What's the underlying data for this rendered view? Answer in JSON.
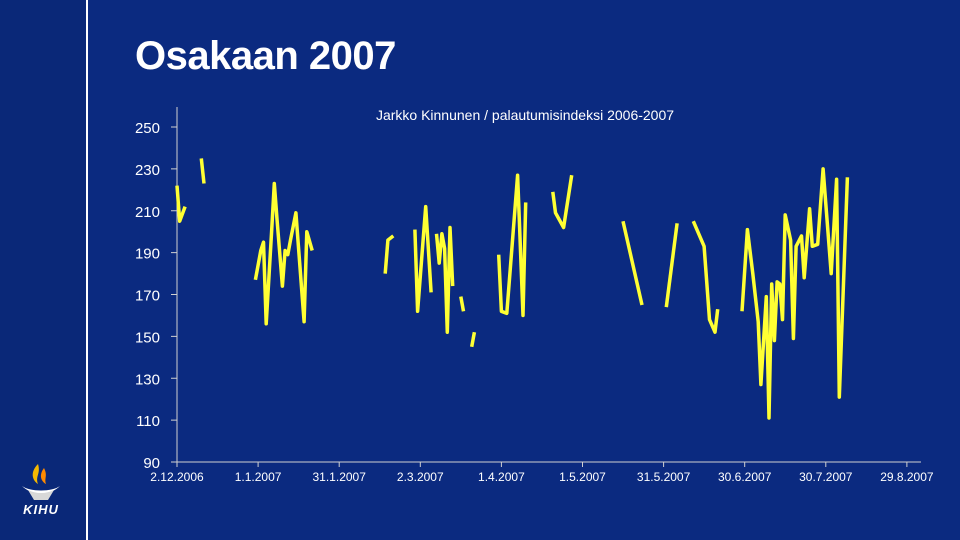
{
  "slide": {
    "title": "Osakaan 2007",
    "logo_text": "KIHU",
    "colors": {
      "background": "#0b2a80",
      "line": "#ffff33",
      "text": "#ffffff",
      "axis": "#d0d0d0"
    }
  },
  "chart_data": {
    "type": "line",
    "title": "Jarkko Kinnunen / palautumisindeksi  2006-2007",
    "xlabel": "",
    "ylabel": "",
    "ylim": [
      90,
      250
    ],
    "y_ticks": [
      "90",
      "110",
      "130",
      "150",
      "170",
      "190",
      "210",
      "230",
      "250"
    ],
    "x_ticks": [
      "2.12.2006",
      "1.1.2007",
      "31.1.2007",
      "2.3.2007",
      "1.4.2007",
      "1.5.2007",
      "31.5.2007",
      "30.6.2007",
      "30.7.2007",
      "29.8.2007"
    ],
    "x_start": "2006-12-02",
    "x_end": "2007-09-01",
    "grid": false,
    "legend": "none",
    "series": [
      {
        "segments": [
          [
            [
              "2006-12-02",
              222
            ],
            [
              "2006-12-03",
              205
            ],
            [
              "2006-12-05",
              212
            ]
          ],
          [
            [
              "2006-12-11",
              235
            ],
            [
              "2006-12-12",
              223
            ]
          ],
          [
            [
              "2006-12-31",
              177
            ],
            [
              "2007-01-02",
              191
            ],
            [
              "2007-01-03",
              195
            ],
            [
              "2007-01-04",
              156
            ],
            [
              "2007-01-06",
              200
            ],
            [
              "2007-01-07",
              223
            ],
            [
              "2007-01-08",
              206
            ],
            [
              "2007-01-10",
              174
            ],
            [
              "2007-01-11",
              191
            ],
            [
              "2007-01-12",
              189
            ],
            [
              "2007-01-13",
              196
            ],
            [
              "2007-01-15",
              209
            ],
            [
              "2007-01-18",
              157
            ],
            [
              "2007-01-19",
              200
            ],
            [
              "2007-01-21",
              191
            ]
          ],
          [
            [
              "2007-02-17",
              180
            ],
            [
              "2007-02-18",
              196
            ],
            [
              "2007-02-20",
              198
            ]
          ],
          [
            [
              "2007-02-28",
              201
            ],
            [
              "2007-03-01",
              162
            ],
            [
              "2007-03-04",
              212
            ],
            [
              "2007-03-06",
              171
            ]
          ],
          [
            [
              "2007-03-08",
              199
            ],
            [
              "2007-03-09",
              185
            ],
            [
              "2007-03-10",
              199
            ],
            [
              "2007-03-11",
              192
            ],
            [
              "2007-03-12",
              152
            ],
            [
              "2007-03-13",
              202
            ],
            [
              "2007-03-14",
              174
            ]
          ],
          [
            [
              "2007-03-17",
              169
            ],
            [
              "2007-03-18",
              162
            ]
          ],
          [
            [
              "2007-03-21",
              145
            ],
            [
              "2007-03-22",
              152
            ]
          ],
          [
            [
              "2007-03-31",
              189
            ],
            [
              "2007-04-01",
              162
            ],
            [
              "2007-04-03",
              161
            ],
            [
              "2007-04-07",
              227
            ],
            [
              "2007-04-09",
              160
            ],
            [
              "2007-04-10",
              214
            ]
          ],
          [
            [
              "2007-04-20",
              219
            ],
            [
              "2007-04-21",
              209
            ],
            [
              "2007-04-24",
              202
            ],
            [
              "2007-04-27",
              227
            ]
          ],
          [
            [
              "2007-05-16",
              205
            ],
            [
              "2007-05-23",
              165
            ]
          ],
          [
            [
              "2007-06-01",
              164
            ],
            [
              "2007-06-05",
              204
            ]
          ],
          [
            [
              "2007-06-11",
              205
            ],
            [
              "2007-06-15",
              193
            ],
            [
              "2007-06-17",
              158
            ],
            [
              "2007-06-19",
              152
            ],
            [
              "2007-06-20",
              163
            ]
          ],
          [
            [
              "2007-06-29",
              162
            ],
            [
              "2007-07-01",
              201
            ],
            [
              "2007-07-03",
              180
            ],
            [
              "2007-07-05",
              157
            ],
            [
              "2007-07-06",
              127
            ],
            [
              "2007-07-08",
              169
            ],
            [
              "2007-07-09",
              111
            ],
            [
              "2007-07-10",
              175
            ],
            [
              "2007-07-11",
              148
            ],
            [
              "2007-07-12",
              176
            ],
            [
              "2007-07-13",
              175
            ],
            [
              "2007-07-14",
              158
            ],
            [
              "2007-07-15",
              208
            ],
            [
              "2007-07-17",
              196
            ],
            [
              "2007-07-18",
              149
            ],
            [
              "2007-07-19",
              193
            ],
            [
              "2007-07-21",
              198
            ],
            [
              "2007-07-22",
              178
            ],
            [
              "2007-07-24",
              211
            ],
            [
              "2007-07-25",
              193
            ],
            [
              "2007-07-27",
              194
            ],
            [
              "2007-07-29",
              230
            ],
            [
              "2007-08-01",
              180
            ],
            [
              "2007-08-03",
              225
            ],
            [
              "2007-08-04",
              121
            ],
            [
              "2007-08-07",
              226
            ]
          ]
        ]
      }
    ]
  }
}
